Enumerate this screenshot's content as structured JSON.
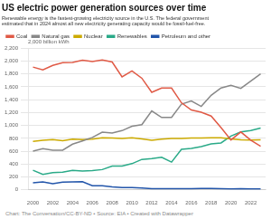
{
  "chart_data": {
    "type": "line",
    "title": "US electric power generation sources over time",
    "subtitle": "Renewable energy is the fastest-growing electricity source in the U.S. The federal government\nestimated that in 2024 almost all new electricity generating capacity would be fossil-fuel-free.",
    "ylabel": "2,000 billion kWh",
    "footer": "Chart: The Conversation/CC-BY-ND • Source: EIA • Created with Datawrapper",
    "x": [
      2000,
      2001,
      2002,
      2003,
      2004,
      2005,
      2006,
      2007,
      2008,
      2009,
      2010,
      2011,
      2012,
      2013,
      2014,
      2015,
      2016,
      2017,
      2018,
      2019,
      2020,
      2021,
      2022,
      2023
    ],
    "series": [
      {
        "name": "Coal",
        "color": "#e05a46",
        "values": [
          1906,
          1864,
          1933,
          1974,
          1978,
          2013,
          1991,
          2016,
          1985,
          1755,
          1847,
          1733,
          1514,
          1581,
          1581,
          1352,
          1239,
          1206,
          1146,
          966,
          774,
          899,
          771,
          677
        ]
      },
      {
        "name": "Natural gas",
        "color": "#888888",
        "values": [
          601,
          639,
          614,
          617,
          710,
          760,
          813,
          896,
          883,
          920,
          987,
          1013,
          1225,
          1124,
          1126,
          1331,
          1379,
          1296,
          1468,
          1582,
          1624,
          1575,
          1687,
          1800
        ]
      },
      {
        "name": "Nuclear",
        "color": "#ccaa00",
        "values": [
          754,
          769,
          780,
          764,
          788,
          782,
          787,
          807,
          806,
          799,
          807,
          790,
          769,
          789,
          797,
          797,
          805,
          805,
          807,
          809,
          790,
          778,
          772,
          776
        ]
      },
      {
        "name": "Renewables",
        "color": "#2aaa88",
        "values": [
          305,
          239,
          266,
          275,
          302,
          293,
          298,
          315,
          368,
          371,
          407,
          473,
          487,
          507,
          431,
          630,
          645,
          673,
          713,
          728,
          834,
          900,
          920,
          960
        ]
      },
      {
        "name": "Petroleum and other",
        "color": "#2255aa",
        "values": [
          111,
          124,
          94,
          119,
          122,
          126,
          64,
          65,
          46,
          36,
          37,
          30,
          18,
          19,
          17,
          17,
          19,
          21,
          21,
          20,
          15,
          17,
          14,
          14
        ]
      }
    ],
    "xlim": [
      1999.5,
      2023.5
    ],
    "xticks": [
      2000,
      2002,
      2004,
      2006,
      2008,
      2010,
      2012,
      2014,
      2016,
      2018,
      2020,
      2022
    ],
    "ylim": [
      0,
      2200
    ],
    "yticks": [
      0,
      200,
      400,
      600,
      800,
      {
        "value": 1000,
        "label": "1,000"
      },
      {
        "value": 1200,
        "label": "1,200"
      },
      {
        "value": 1400,
        "label": "1,400"
      },
      {
        "value": 1600,
        "label": "1,600"
      },
      {
        "value": 1800,
        "label": "1,800"
      },
      {
        "value": 2000,
        "label": "2,000"
      },
      {
        "value": 2200,
        "label": "2,200"
      }
    ],
    "grid": "y",
    "legend": "top"
  }
}
